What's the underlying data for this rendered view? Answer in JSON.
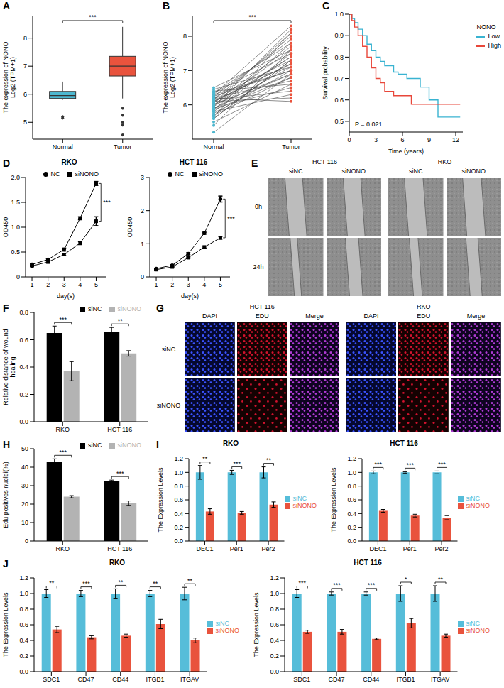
{
  "chart_data": [
    {
      "panel": "A",
      "type": "box",
      "categories": [
        "Normal",
        "Tumor"
      ],
      "y_label": [
        "The expression of NONO",
        "Log2 (TPM+1)"
      ],
      "colors": [
        "#4db8d0",
        "#e9533d"
      ],
      "boxes": [
        {
          "min": 5.8,
          "q1": 5.85,
          "median": 5.95,
          "q3": 6.1,
          "max": 6.45,
          "outliers": [
            5.2,
            5.15
          ]
        },
        {
          "min": 5.85,
          "q1": 6.65,
          "median": 7.0,
          "q3": 7.35,
          "max": 8.4,
          "outliers": [
            5.5,
            5.25,
            5.0,
            4.9,
            4.55
          ]
        }
      ],
      "ylim": [
        4.4,
        8.8
      ],
      "yticks": [
        5,
        6,
        7,
        8
      ],
      "significance": "***"
    },
    {
      "panel": "B",
      "type": "paired_line",
      "categories": [
        "Normal",
        "Tumor"
      ],
      "y_label": [
        "The expression of NONO",
        "Log2 (TPM+1)"
      ],
      "colors": [
        "#4db8d0",
        "#e9533d"
      ],
      "pairs": [
        [
          5.2,
          6.9
        ],
        [
          5.4,
          7.6
        ],
        [
          5.5,
          6.6
        ],
        [
          5.6,
          7.3
        ],
        [
          5.65,
          8.1
        ],
        [
          5.7,
          6.8
        ],
        [
          5.75,
          7.0
        ],
        [
          5.8,
          7.5
        ],
        [
          5.8,
          6.3
        ],
        [
          5.85,
          7.8
        ],
        [
          5.9,
          7.1
        ],
        [
          5.9,
          6.5
        ],
        [
          5.95,
          8.2
        ],
        [
          6.0,
          7.4
        ],
        [
          6.0,
          6.9
        ],
        [
          6.05,
          7.7
        ],
        [
          6.1,
          7.2
        ],
        [
          6.1,
          6.2
        ],
        [
          6.15,
          8.0
        ],
        [
          6.2,
          7.3
        ],
        [
          6.2,
          6.7
        ],
        [
          6.25,
          7.9
        ],
        [
          6.3,
          7.0
        ],
        [
          6.3,
          8.3
        ],
        [
          6.35,
          7.5
        ],
        [
          6.4,
          6.6
        ],
        [
          6.45,
          7.1
        ],
        [
          6.5,
          7.6
        ],
        [
          5.7,
          7.2
        ],
        [
          5.85,
          6.8
        ],
        [
          5.95,
          7.4
        ],
        [
          6.05,
          8.1
        ],
        [
          6.15,
          6.4
        ],
        [
          6.25,
          7.0
        ],
        [
          6.35,
          7.8
        ],
        [
          5.6,
          7.3
        ],
        [
          5.9,
          6.9
        ],
        [
          6.0,
          7.6
        ],
        [
          6.1,
          7.2
        ],
        [
          6.2,
          6.1
        ]
      ],
      "ylim": [
        5,
        8.6
      ],
      "yticks": [
        6,
        7,
        8
      ],
      "significance": "***"
    },
    {
      "panel": "C",
      "type": "line",
      "line_style": "step",
      "x_label": "Time (years)",
      "y_label": "Survival probability",
      "legend_title": "NONO",
      "legend": "right",
      "series": [
        {
          "name": "Low",
          "color": "#39b3d1",
          "x": [
            0,
            0.3,
            0.6,
            1,
            1.5,
            2,
            2.5,
            3,
            3.5,
            4,
            5,
            5.5,
            6.5,
            8,
            9,
            10,
            12.5
          ],
          "values": [
            1,
            0.98,
            0.96,
            0.93,
            0.9,
            0.86,
            0.83,
            0.8,
            0.78,
            0.76,
            0.73,
            0.72,
            0.7,
            0.66,
            0.6,
            0.52,
            0.52
          ]
        },
        {
          "name": "High",
          "color": "#e8473a",
          "x": [
            0,
            0.3,
            0.6,
            1,
            1.5,
            2,
            2.5,
            3,
            3.5,
            4,
            5,
            7,
            12.5
          ],
          "values": [
            1,
            0.97,
            0.94,
            0.9,
            0.85,
            0.8,
            0.75,
            0.7,
            0.68,
            0.64,
            0.62,
            0.58,
            0.58
          ]
        }
      ],
      "xlim": [
        0,
        12.8
      ],
      "xticks": [
        0,
        3,
        6,
        9,
        12
      ],
      "ylim": [
        0.45,
        1.0
      ],
      "yticks": [
        0.5,
        0.6,
        0.7,
        0.8,
        0.9,
        {
          "value": 1,
          "label": "1.0"
        }
      ],
      "annotations": [
        "P = 0.021"
      ]
    },
    {
      "panel": "D",
      "type": "line",
      "title": "RKO",
      "x_label": "day(s)",
      "y_label": "OD450",
      "legend": "top",
      "x": [
        1,
        2,
        3,
        4,
        5
      ],
      "series": [
        {
          "name": "NC",
          "color": "#000000",
          "marker": "circle",
          "values": [
            0.25,
            0.35,
            0.55,
            1.18,
            1.88
          ],
          "errors": [
            0.01,
            0.02,
            0.03,
            0.03,
            0.04
          ]
        },
        {
          "name": "siNONO",
          "color": "#000000",
          "marker": "square",
          "values": [
            0.22,
            0.3,
            0.45,
            0.68,
            1.12
          ],
          "errors": [
            0.01,
            0.02,
            0.02,
            0.03,
            0.09
          ]
        }
      ],
      "xlim": [
        0.6,
        5.6
      ],
      "xticks": [
        1,
        2,
        3,
        4,
        5
      ],
      "ylim": [
        0,
        2
      ],
      "yticks": [
        0,
        0.5,
        {
          "value": 1,
          "label": "1.0"
        },
        1.5,
        {
          "value": 2,
          "label": "2.0"
        }
      ],
      "significance": "***"
    },
    {
      "type": "line",
      "title": "HCT 116",
      "x_label": "day(s)",
      "y_label": "OD450",
      "legend": "top",
      "x": [
        1,
        2,
        3,
        4,
        5
      ],
      "series": [
        {
          "name": "NC",
          "color": "#000000",
          "marker": "circle",
          "values": [
            0.25,
            0.35,
            0.7,
            1.32,
            2.35
          ],
          "errors": [
            0.01,
            0.02,
            0.03,
            0.03,
            0.09
          ]
        },
        {
          "name": "siNONO",
          "color": "#000000",
          "marker": "square",
          "values": [
            0.22,
            0.3,
            0.58,
            0.9,
            1.18
          ],
          "errors": [
            0.01,
            0.02,
            0.02,
            0.03,
            0.04
          ]
        }
      ],
      "xlim": [
        0.6,
        5.6
      ],
      "xticks": [
        1,
        2,
        3,
        4,
        5
      ],
      "ylim": [
        0,
        3
      ],
      "yticks": [
        0,
        1,
        2,
        3
      ],
      "significance": "***"
    },
    {
      "panel": "F",
      "type": "bar",
      "categories": [
        "RKO",
        "HCT 116"
      ],
      "y_label": "Relative distance of wound healing",
      "legend": "top",
      "series": [
        {
          "name": "siNC",
          "color": "#000000",
          "values": [
            0.65,
            0.66
          ],
          "errors": [
            0.05,
            0.03
          ]
        },
        {
          "name": "siNONO",
          "color": "#b3b3b3",
          "values": [
            0.37,
            0.5
          ],
          "errors": [
            0.07,
            0.02
          ]
        }
      ],
      "ylim": [
        0,
        0.8
      ],
      "yticks": [
        {
          "value": 0,
          "label": "0.0"
        },
        0.2,
        0.4,
        0.6,
        0.8
      ],
      "significance": [
        "***",
        "**"
      ]
    },
    {
      "panel": "H",
      "type": "bar",
      "categories": [
        "RKO",
        "HCT 116"
      ],
      "y_label": "Edu positives nuclei(%)",
      "legend": "top",
      "series": [
        {
          "name": "siNC",
          "color": "#000000",
          "values": [
            43,
            32.5
          ],
          "errors": [
            1.5,
            0.5
          ]
        },
        {
          "name": "siNONO",
          "color": "#b3b3b3",
          "values": [
            24,
            20.5
          ],
          "errors": [
            0.6,
            1.2
          ]
        }
      ],
      "ylim": [
        0,
        50
      ],
      "yticks": [
        0,
        10,
        20,
        30,
        40,
        50
      ],
      "significance": [
        "***",
        "***"
      ]
    },
    {
      "panel": "I",
      "type": "bar",
      "title": "RKO",
      "categories": [
        "DEC1",
        "Per1",
        "Per2"
      ],
      "y_label": "The Expression Levels",
      "legend": "right",
      "series": [
        {
          "name": "siNC",
          "color": "#56bdd9",
          "values": [
            1.0,
            1.0,
            1.0
          ],
          "errors": [
            0.1,
            0.03,
            0.08
          ]
        },
        {
          "name": "siNONO",
          "color": "#e9533d",
          "values": [
            0.43,
            0.41,
            0.53
          ],
          "errors": [
            0.04,
            0.02,
            0.04
          ]
        }
      ],
      "ylim": [
        0,
        1.2
      ],
      "yticks": [
        {
          "value": 0,
          "label": "0.0"
        },
        0.2,
        0.4,
        0.6,
        0.8,
        {
          "value": 1,
          "label": "1.0"
        },
        1.2
      ],
      "significance": [
        "**",
        "***",
        "**"
      ]
    },
    {
      "type": "bar",
      "title": "HCT 116",
      "categories": [
        "DEC1",
        "Per1",
        "Per2"
      ],
      "y_label": "The Expression Levels",
      "legend": "right",
      "series": [
        {
          "name": "siNC",
          "color": "#56bdd9",
          "values": [
            1.0,
            1.0,
            1.0
          ],
          "errors": [
            0.02,
            0.01,
            0.02
          ]
        },
        {
          "name": "siNONO",
          "color": "#e9533d",
          "values": [
            0.44,
            0.37,
            0.34
          ],
          "errors": [
            0.02,
            0.02,
            0.03
          ]
        }
      ],
      "ylim": [
        0,
        1.2
      ],
      "yticks": [
        {
          "value": 0,
          "label": "0.0"
        },
        0.2,
        0.4,
        0.6,
        0.8,
        {
          "value": 1,
          "label": "1.0"
        },
        1.2
      ],
      "significance": [
        "***",
        "***",
        "***"
      ]
    },
    {
      "panel": "J",
      "type": "bar",
      "title": "RKO",
      "categories": [
        "SDC1",
        "CD47",
        "CD44",
        "ITGB1",
        "ITGAV"
      ],
      "y_label": "The Expression Levels",
      "legend": "right",
      "series": [
        {
          "name": "siNC",
          "color": "#56bdd9",
          "values": [
            1.0,
            1.0,
            1.0,
            1.0,
            1.0
          ],
          "errors": [
            0.05,
            0.04,
            0.06,
            0.04,
            0.08
          ]
        },
        {
          "name": "siNONO",
          "color": "#e9533d",
          "values": [
            0.54,
            0.44,
            0.46,
            0.61,
            0.4
          ],
          "errors": [
            0.04,
            0.02,
            0.02,
            0.06,
            0.03
          ]
        }
      ],
      "ylim": [
        0,
        1.2
      ],
      "yticks": [
        {
          "value": 0,
          "label": "0.0"
        },
        0.2,
        0.4,
        0.6,
        0.8,
        {
          "value": 1,
          "label": "1.0"
        },
        1.2
      ],
      "significance": [
        "**",
        "***",
        "**",
        "**",
        "**"
      ]
    },
    {
      "type": "bar",
      "title": "HCT 116",
      "categories": [
        "SDC1",
        "CD47",
        "CD44",
        "ITGB1",
        "ITGAV"
      ],
      "y_label": "The Expression Levels",
      "legend": "right",
      "series": [
        {
          "name": "siNC",
          "color": "#56bdd9",
          "values": [
            1.0,
            1.0,
            1.0,
            1.0,
            1.0
          ],
          "errors": [
            0.05,
            0.02,
            0.02,
            0.1,
            0.1
          ]
        },
        {
          "name": "siNONO",
          "color": "#e9533d",
          "values": [
            0.51,
            0.51,
            0.42,
            0.62,
            0.46
          ],
          "errors": [
            0.02,
            0.03,
            0.01,
            0.06,
            0.02
          ]
        }
      ],
      "ylim": [
        0,
        1.2
      ],
      "yticks": [
        {
          "value": 0,
          "label": "0.0"
        },
        0.2,
        0.4,
        0.6,
        0.8,
        {
          "value": 1,
          "label": "1.0"
        },
        1.2
      ],
      "significance": [
        "***",
        "***",
        "***",
        "*",
        "**"
      ]
    }
  ],
  "images": [
    {
      "panel": "E",
      "type": "image_grid",
      "groups": [
        "HCT 116",
        "RKO"
      ],
      "columns": [
        "siNC",
        "siNONO"
      ],
      "rows": [
        "0h",
        "24h"
      ]
    },
    {
      "panel": "G",
      "type": "image_grid",
      "groups": [
        "HCT 116",
        "RKO"
      ],
      "columns": [
        "DAPI",
        "EDU",
        "Merge"
      ],
      "rows": [
        "siNC",
        "siNONO"
      ]
    }
  ]
}
